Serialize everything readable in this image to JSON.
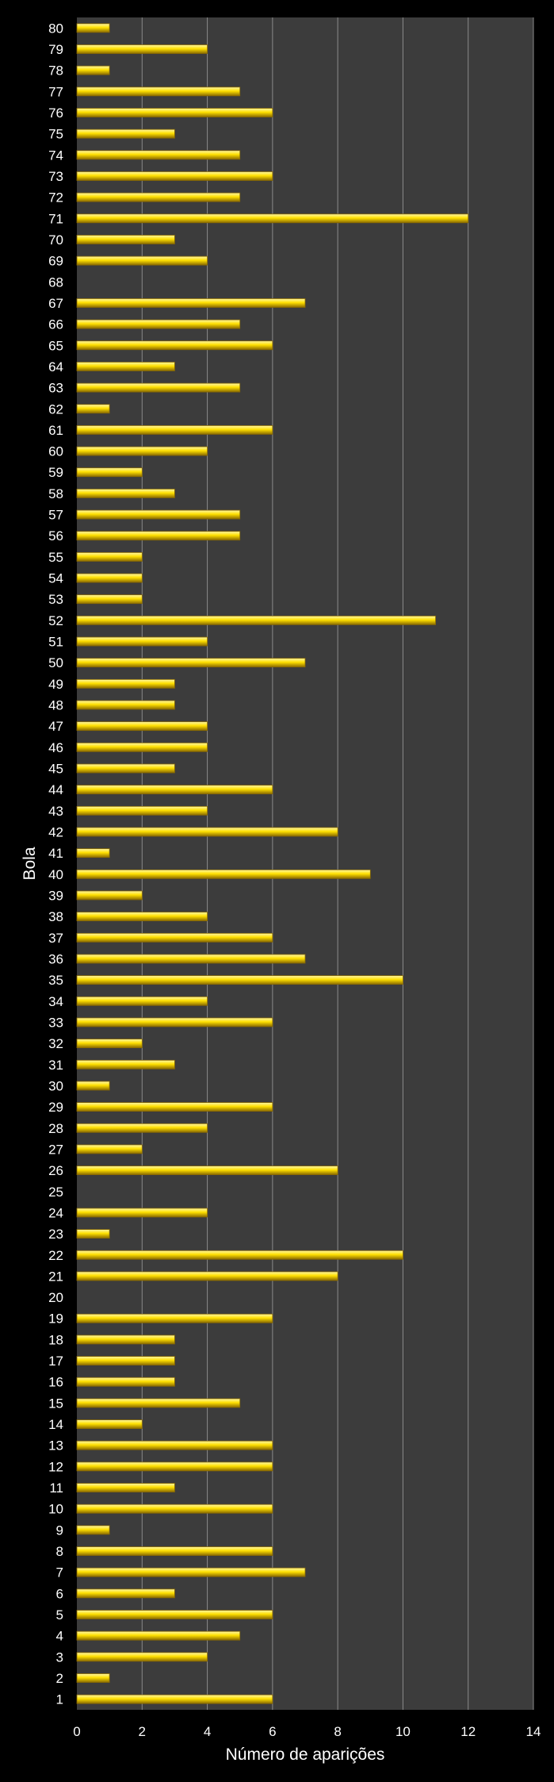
{
  "chart_data": {
    "type": "bar",
    "orientation": "horizontal",
    "title": "",
    "xlabel": "Número de aparições",
    "ylabel": "Bola",
    "xlim": [
      0,
      14
    ],
    "xticks": [
      0,
      2,
      4,
      6,
      8,
      10,
      12,
      14
    ],
    "grid": true,
    "legend": "none",
    "categories": [
      "1",
      "2",
      "3",
      "4",
      "5",
      "6",
      "7",
      "8",
      "9",
      "10",
      "11",
      "12",
      "13",
      "14",
      "15",
      "16",
      "17",
      "18",
      "19",
      "20",
      "21",
      "22",
      "23",
      "24",
      "25",
      "26",
      "27",
      "28",
      "29",
      "30",
      "31",
      "32",
      "33",
      "34",
      "35",
      "36",
      "37",
      "38",
      "39",
      "40",
      "41",
      "42",
      "43",
      "44",
      "45",
      "46",
      "47",
      "48",
      "49",
      "50",
      "51",
      "52",
      "53",
      "54",
      "55",
      "56",
      "57",
      "58",
      "59",
      "60",
      "61",
      "62",
      "63",
      "64",
      "65",
      "66",
      "67",
      "68",
      "69",
      "70",
      "71",
      "72",
      "73",
      "74",
      "75",
      "76",
      "77",
      "78",
      "79",
      "80"
    ],
    "values": [
      6,
      1,
      4,
      5,
      6,
      3,
      7,
      6,
      1,
      6,
      3,
      6,
      6,
      2,
      5,
      3,
      3,
      3,
      6,
      0,
      8,
      10,
      1,
      4,
      0,
      8,
      2,
      4,
      6,
      1,
      3,
      2,
      6,
      4,
      10,
      7,
      6,
      4,
      2,
      9,
      1,
      8,
      4,
      6,
      3,
      4,
      4,
      3,
      3,
      7,
      4,
      11,
      2,
      2,
      2,
      5,
      5,
      3,
      2,
      4,
      6,
      1,
      5,
      3,
      6,
      5,
      7,
      0,
      4,
      3,
      12,
      5,
      6,
      5,
      3,
      6,
      5,
      1,
      4,
      1
    ],
    "colors": {
      "background": "#000000",
      "plot_area": "#3c3c3c",
      "gridline": "#8a8a8a",
      "bar_top": "#fff7a8",
      "bar_mid": "#ffe000",
      "bar_bottom": "#8a6a00",
      "text": "#ffffff"
    }
  }
}
